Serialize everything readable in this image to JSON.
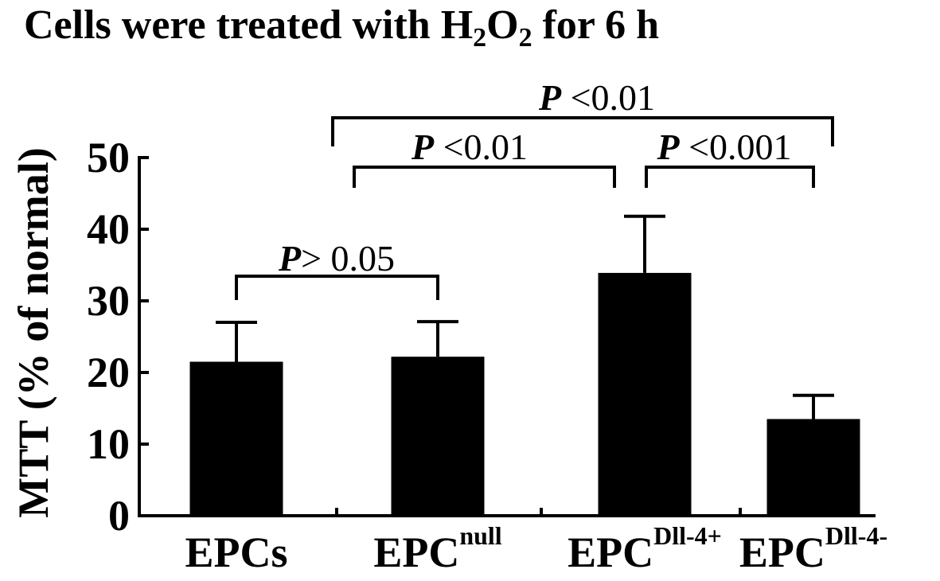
{
  "chart_data": {
    "type": "bar",
    "title": {
      "prefix": "Cells were treated with H",
      "sub1": "2",
      "mid": "O",
      "sub2": "2",
      "suffix": " for 6 h"
    },
    "ylabel": "MTT (% of normal)",
    "xlabel": "",
    "ylim": [
      0,
      50
    ],
    "yticks": [
      "0",
      "10",
      "20",
      "30",
      "40",
      "50"
    ],
    "categories": [
      {
        "base": "EPCs",
        "sup": ""
      },
      {
        "base": "EPC",
        "sup": "null"
      },
      {
        "base": "EPC",
        "sup": "Dll-4+"
      },
      {
        "base": "EPC",
        "sup": "Dll-4-"
      }
    ],
    "values": [
      21.5,
      22.2,
      33.9,
      13.5
    ],
    "errors": [
      5.5,
      4.9,
      7.9,
      3.3
    ],
    "bar_color": "#000000",
    "grid": false,
    "legend": "none",
    "significance": [
      {
        "from": 0,
        "to": 1,
        "p": "P",
        "text": "> 0.05"
      },
      {
        "from": 1,
        "to": 2,
        "p": "P",
        "text": " <0.01"
      },
      {
        "from": 2,
        "to": 3,
        "p": "P",
        "text": " <0.001"
      },
      {
        "from": 1,
        "to": 3,
        "p": "P",
        "text": " <0.01"
      }
    ]
  }
}
